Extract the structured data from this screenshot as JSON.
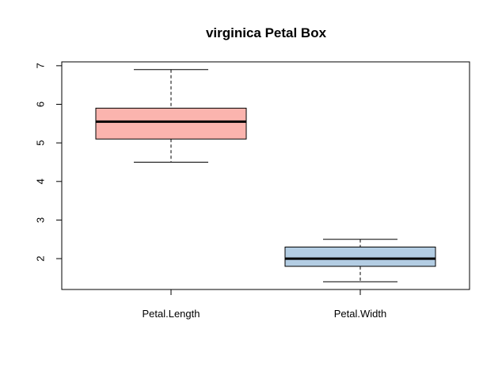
{
  "chart_data": {
    "type": "boxplot",
    "title": "virginica Petal Box",
    "xlabel": "",
    "ylabel": "",
    "ylim": [
      1.2,
      7.1
    ],
    "y_ticks": [
      2,
      3,
      4,
      5,
      6,
      7
    ],
    "categories": [
      "Petal.Length",
      "Petal.Width"
    ],
    "boxes": [
      {
        "category": "Petal.Length",
        "min": 4.5,
        "q1": 5.1,
        "median": 5.55,
        "q3": 5.9,
        "max": 6.9,
        "color": "#FBB4AE"
      },
      {
        "category": "Petal.Width",
        "min": 1.4,
        "q1": 1.8,
        "median": 2.0,
        "q3": 2.3,
        "max": 2.5,
        "color": "#B3CDE3"
      }
    ],
    "grid": false,
    "legend": "none"
  }
}
